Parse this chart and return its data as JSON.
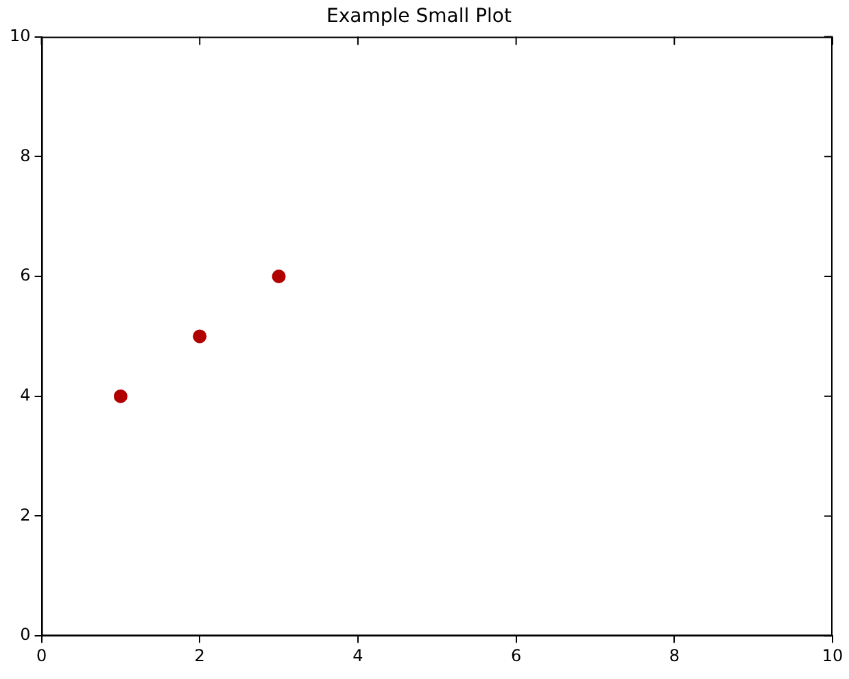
{
  "chart_data": {
    "type": "scatter",
    "title": "Example Small Plot",
    "x": [
      1,
      2,
      3
    ],
    "series": [
      {
        "color": "#b00000",
        "values": [
          4,
          5,
          6
        ]
      }
    ],
    "xlim": [
      0,
      10
    ],
    "xticks": [
      0,
      2,
      4,
      6,
      8,
      10
    ],
    "ylim": [
      0,
      10
    ],
    "yticks": [
      0,
      2,
      4,
      6,
      8,
      10
    ],
    "grid": false,
    "legend": false,
    "marker": "circle"
  }
}
